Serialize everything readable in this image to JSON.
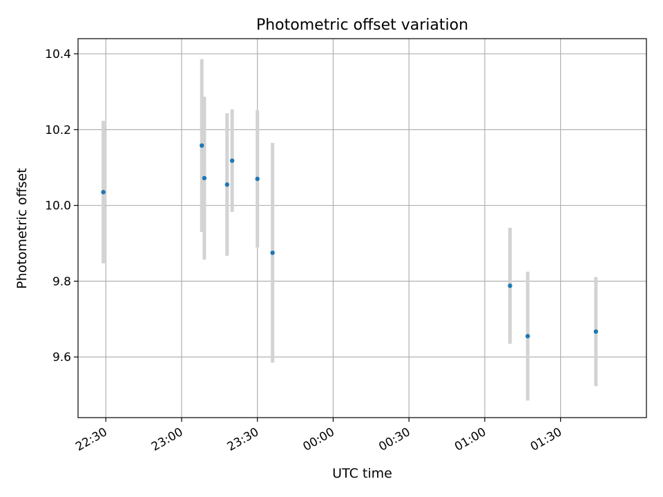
{
  "chart_data": {
    "type": "scatter",
    "title": "Photometric offset variation",
    "xlabel": "UTC time",
    "ylabel": "Photometric offset",
    "x_axis_type": "time",
    "xlim": [
      "22:19",
      "02:04"
    ],
    "ylim": [
      9.44,
      10.44
    ],
    "grid": true,
    "x_ticks": [
      "22:30",
      "23:00",
      "23:30",
      "00:00",
      "00:30",
      "01:00",
      "01:30"
    ],
    "y_ticks": [
      "9.6",
      "9.8",
      "10.0",
      "10.2",
      "10.4"
    ],
    "y_tick_values": [
      9.6,
      9.8,
      10.0,
      10.2,
      10.4
    ],
    "series": [
      {
        "x": [
          "22:29",
          "23:08",
          "23:09",
          "23:18",
          "23:20",
          "23:30",
          "23:36",
          "01:10",
          "01:17",
          "01:44"
        ],
        "y": [
          10.035,
          10.158,
          10.072,
          10.055,
          10.118,
          10.07,
          9.875,
          9.788,
          9.655,
          9.667
        ],
        "yerr": [
          0.188,
          0.228,
          0.215,
          0.188,
          0.135,
          0.181,
          0.29,
          0.153,
          0.17,
          0.144
        ]
      }
    ],
    "colors": {
      "point": "#1f77b4",
      "errorbar": "#d3d3d3",
      "grid": "#b0b0b0"
    }
  }
}
